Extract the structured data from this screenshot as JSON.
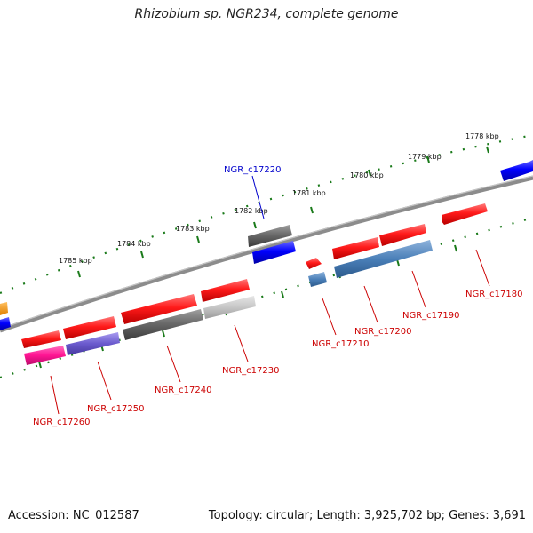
{
  "title": "Rhizobium sp. NGR234, complete genome",
  "footer": {
    "accession": "Accession: NC_012587",
    "topology": "Topology: circular; Length: 3,925,702 bp; Genes: 3,691"
  },
  "colors": {
    "backbone": "#8c8c8c",
    "tick": "#1a7a1a",
    "label_red": "#cc0000",
    "label_blue": "#0000cc"
  },
  "scale": {
    "unit": "kbp",
    "labels": [
      "1778 kbp",
      "1779 kbp",
      "1780 kbp",
      "1781 kbp",
      "1782 kbp",
      "1783 kbp",
      "1784 kbp",
      "1785 kbp"
    ]
  },
  "genes": [
    {
      "name": "NGR_c17180",
      "color": "red",
      "labeled": true
    },
    {
      "name": "NGR_c17190",
      "color": "steelblue",
      "labeled": true
    },
    {
      "name": "NGR_c17200",
      "color": "red",
      "labeled": true
    },
    {
      "name": "NGR_c17210",
      "color": "red",
      "labeled": true
    },
    {
      "name": "NGR_c17220",
      "color": "gray",
      "labeled": true
    },
    {
      "name": "NGR_c17230",
      "color": "silver",
      "labeled": true
    },
    {
      "name": "NGR_c17240",
      "color": "gray",
      "labeled": true
    },
    {
      "name": "NGR_c17250",
      "color": "slateblue",
      "labeled": true
    },
    {
      "name": "NGR_c17260",
      "color": "deeppink",
      "labeled": true
    }
  ]
}
